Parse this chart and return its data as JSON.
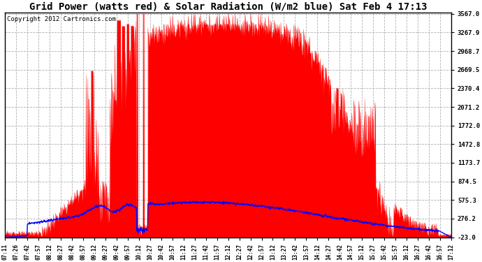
{
  "title": "Grid Power (watts red) & Solar Radiation (W/m2 blue) Sat Feb 4 17:13",
  "copyright": "Copyright 2012 Cartronics.com",
  "yticks": [
    3567.0,
    3267.9,
    2968.7,
    2669.5,
    2370.4,
    2071.2,
    1772.0,
    1472.8,
    1173.7,
    874.5,
    575.3,
    276.2,
    -23.0
  ],
  "ymin": -23.0,
  "ymax": 3567.0,
  "xtick_labels": [
    "07:11",
    "07:26",
    "07:42",
    "07:57",
    "08:12",
    "08:27",
    "08:42",
    "08:57",
    "09:12",
    "09:27",
    "09:42",
    "09:57",
    "10:12",
    "10:27",
    "10:42",
    "10:57",
    "11:12",
    "11:27",
    "11:42",
    "11:57",
    "12:12",
    "12:27",
    "12:42",
    "12:57",
    "13:12",
    "13:27",
    "13:42",
    "13:57",
    "14:12",
    "14:27",
    "14:42",
    "14:57",
    "15:12",
    "15:27",
    "15:42",
    "15:57",
    "16:12",
    "16:27",
    "16:42",
    "16:57",
    "17:12"
  ],
  "bg_color": "#ffffff",
  "grid_color": "#b0b0b0",
  "red_color": "#ff0000",
  "blue_color": "#0000ff",
  "title_fontsize": 10,
  "copyright_fontsize": 6.5
}
